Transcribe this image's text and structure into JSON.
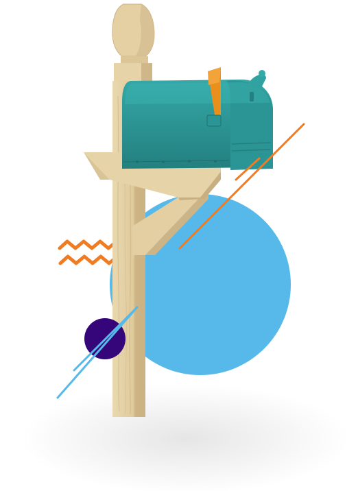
{
  "illustration": {
    "subject": "mailbox-on-wooden-post",
    "colors": {
      "mailbox": "#2c9a9b",
      "mailbox_dark": "#237f80",
      "mailbox_light": "#3cb3b2",
      "flag": "#e88f1c",
      "wood": "#e2cfa4",
      "wood_dark": "#c9b184",
      "wood_light": "#efe1bd",
      "circle_blue": "#56b9e9",
      "circle_purple": "#35057a",
      "line_orange": "#ef7c22",
      "line_blue": "#56b9e9",
      "zigzag_orange": "#ef7c22",
      "background": "#ffffff"
    },
    "decorations": [
      "large-blue-circle",
      "small-purple-circle",
      "orange-diagonal-line",
      "blue-diagonal-lines",
      "orange-zigzag-lines"
    ]
  }
}
